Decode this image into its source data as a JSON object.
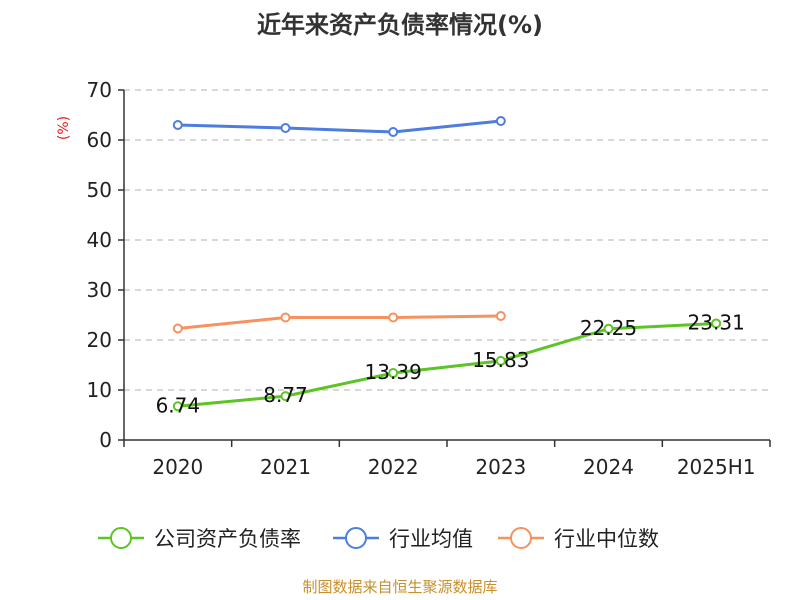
{
  "chart_data": {
    "type": "line",
    "title": "近年来资产负债率情况(%)",
    "ylabel": "(%)",
    "xlabel": "",
    "categories": [
      "2020",
      "2021",
      "2022",
      "2023",
      "2024",
      "2025H1"
    ],
    "ylim": [
      0,
      70
    ],
    "yticks": [
      0,
      10,
      20,
      30,
      40,
      50,
      60,
      70
    ],
    "grid": true,
    "legend_position": "bottom",
    "series": [
      {
        "name": "公司资产负债率",
        "color": "#5cc425",
        "values": [
          6.74,
          8.77,
          13.39,
          15.83,
          22.25,
          23.31
        ],
        "labels": [
          "6.74",
          "8.77",
          "13.39",
          "15.83",
          "22.25",
          "23.31"
        ]
      },
      {
        "name": "行业均值",
        "color": "#4c7ddf",
        "values": [
          63.0,
          62.4,
          61.6,
          63.8,
          null,
          null
        ]
      },
      {
        "name": "行业中位数",
        "color": "#f5925f",
        "values": [
          22.3,
          24.5,
          24.5,
          24.8,
          null,
          null
        ]
      }
    ],
    "source": "制图数据来自恒生聚源数据库"
  }
}
